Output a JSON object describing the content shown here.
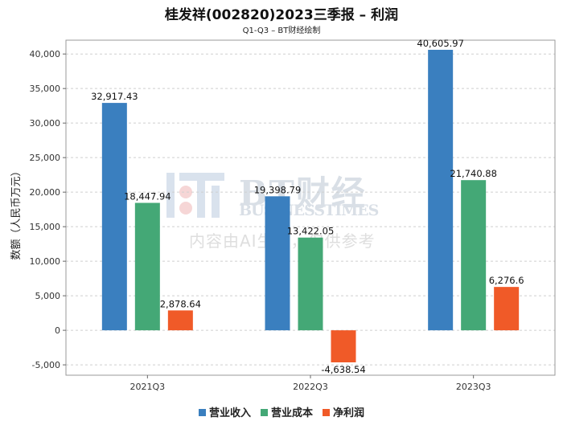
{
  "title": "桂发祥(002820)2023三季报 – 利润",
  "subtitle": "Q1-Q3 – BT财经绘制",
  "watermark": {
    "brand": "BT财经",
    "brand_en": "BUSINESSTIMES",
    "notice": "内容由AI生成，仅供参考"
  },
  "chart_data": {
    "type": "bar",
    "categories": [
      "2021Q3",
      "2022Q3",
      "2023Q3"
    ],
    "series": [
      {
        "name": "营业收入",
        "color": "#3a7fbf",
        "values": [
          32917.43,
          19398.79,
          40605.97
        ],
        "labels": [
          "32,917.43",
          "19,398.79",
          "40,605.97"
        ]
      },
      {
        "name": "营业成本",
        "color": "#44a876",
        "values": [
          18447.94,
          13422.05,
          21740.88
        ],
        "labels": [
          "18,447.94",
          "13,422.05",
          "21,740.88"
        ]
      },
      {
        "name": "净利润",
        "color": "#f05a28",
        "values": [
          2878.64,
          -4638.54,
          6276.6
        ],
        "labels": [
          "2,878.64",
          "-4,638.54",
          "6,276.6"
        ]
      }
    ],
    "ylabel": "数额（人民币万元）",
    "ylim": [
      -6500,
      42000
    ],
    "yticks": [
      -5000,
      0,
      5000,
      10000,
      15000,
      20000,
      25000,
      30000,
      35000,
      40000
    ],
    "ytick_labels": [
      "-5,000",
      "0",
      "5,000",
      "10,000",
      "15,000",
      "20,000",
      "25,000",
      "30,000",
      "35,000",
      "40,000"
    ],
    "grid": true,
    "legend": "bottom"
  }
}
